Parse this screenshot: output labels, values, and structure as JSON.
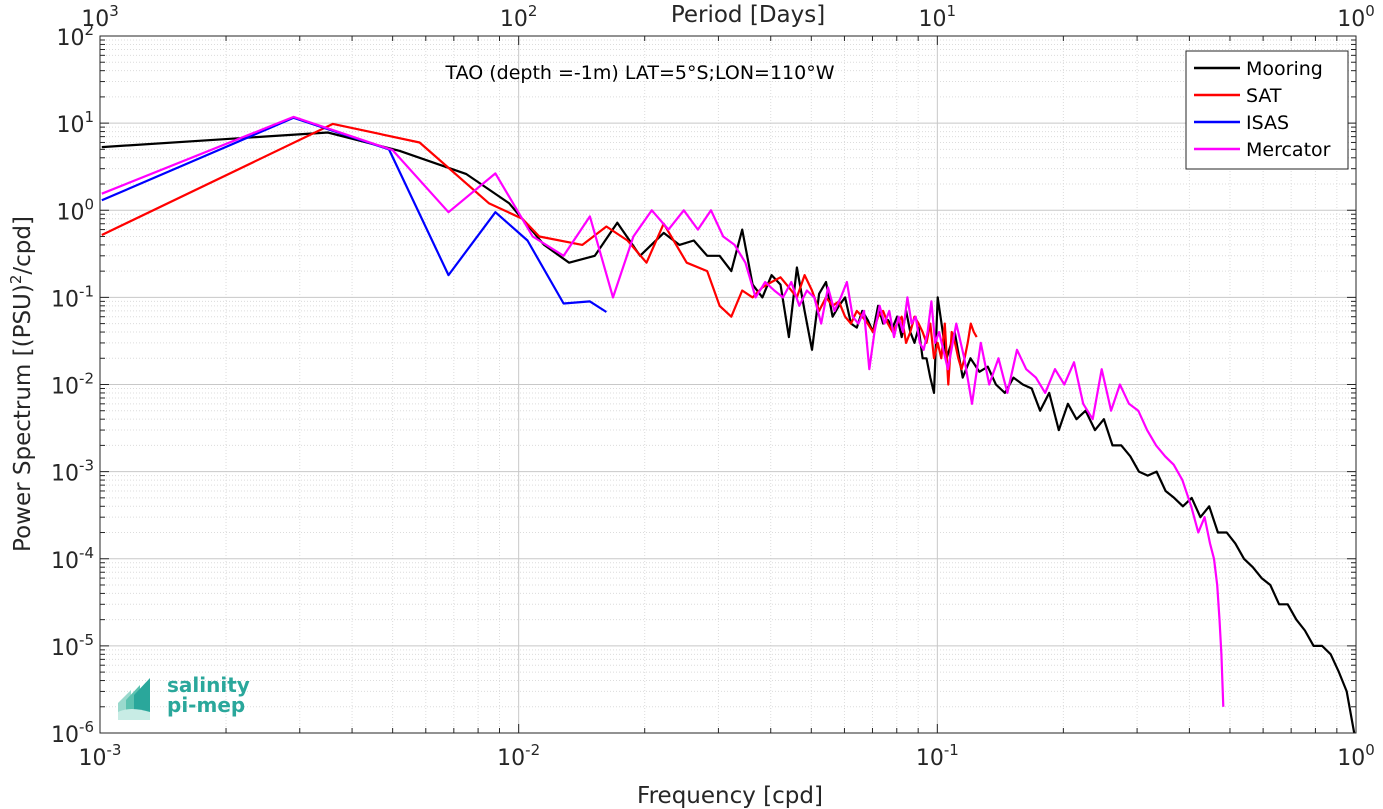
{
  "chart_data": {
    "type": "line",
    "title": "TAO (depth =-1m) LAT=5°S;LON=110°W",
    "xlabel": "Frequency [cpd]",
    "ylabel": "Power Spectrum [(PSU)²/cpd]",
    "top_axis_label": "Period [Days]",
    "x_scale": "log",
    "y_scale": "log",
    "xlim": [
      0.001,
      1
    ],
    "ylim": [
      1e-06,
      100
    ],
    "grid": true,
    "legend_position": "top-right",
    "x_ticks": [
      {
        "value": 0.001,
        "base": "10",
        "exp": "-3"
      },
      {
        "value": 0.01,
        "base": "10",
        "exp": "-2"
      },
      {
        "value": 0.1,
        "base": "10",
        "exp": "-1"
      },
      {
        "value": 1,
        "base": "10",
        "exp": "0"
      }
    ],
    "top_ticks": [
      {
        "value": 0.001,
        "base": "10",
        "exp": "3"
      },
      {
        "value": 0.01,
        "base": "10",
        "exp": "2"
      },
      {
        "value": 0.1,
        "base": "10",
        "exp": "1"
      },
      {
        "value": 1,
        "base": "10",
        "exp": "0"
      }
    ],
    "y_ticks": [
      {
        "value": 100,
        "base": "10",
        "exp": "2"
      },
      {
        "value": 10,
        "base": "10",
        "exp": "1"
      },
      {
        "value": 1,
        "base": "10",
        "exp": "0"
      },
      {
        "value": 0.1,
        "base": "10",
        "exp": "-1"
      },
      {
        "value": 0.01,
        "base": "10",
        "exp": "-2"
      },
      {
        "value": 0.001,
        "base": "10",
        "exp": "-3"
      },
      {
        "value": 0.0001,
        "base": "10",
        "exp": "-4"
      },
      {
        "value": 1e-05,
        "base": "10",
        "exp": "-5"
      },
      {
        "value": 1e-06,
        "base": "10",
        "exp": "-6"
      }
    ],
    "series": [
      {
        "name": "Mooring",
        "color": "#000000",
        "x": [
          0.00101,
          0.0035,
          0.0052,
          0.0075,
          0.0095,
          0.0115,
          0.0132,
          0.0152,
          0.0172,
          0.0195,
          0.0222,
          0.0242,
          0.0262,
          0.0282,
          0.0302,
          0.0322,
          0.0342,
          0.0362,
          0.0382,
          0.0402,
          0.0422,
          0.0442,
          0.0462,
          0.0482,
          0.0502,
          0.0522,
          0.0542,
          0.0562,
          0.0582,
          0.0602,
          0.0622,
          0.0642,
          0.0662,
          0.0682,
          0.0702,
          0.0722,
          0.0742,
          0.0762,
          0.0782,
          0.0802,
          0.0822,
          0.0842,
          0.0862,
          0.0882,
          0.0902,
          0.0922,
          0.0942,
          0.0962,
          0.0982,
          0.1002,
          0.1052,
          0.11,
          0.115,
          0.12,
          0.126,
          0.132,
          0.138,
          0.145,
          0.152,
          0.16,
          0.168,
          0.176,
          0.185,
          0.195,
          0.205,
          0.215,
          0.226,
          0.238,
          0.25,
          0.262,
          0.275,
          0.289,
          0.303,
          0.318,
          0.334,
          0.351,
          0.368,
          0.386,
          0.405,
          0.425,
          0.446,
          0.468,
          0.491,
          0.515,
          0.54,
          0.567,
          0.595,
          0.624,
          0.655,
          0.687,
          0.72,
          0.755,
          0.792,
          0.83,
          0.87,
          0.91,
          0.95,
          0.99
        ],
        "y": [
          5.3,
          7.8,
          4.8,
          2.6,
          1.2,
          0.4,
          0.25,
          0.3,
          0.72,
          0.3,
          0.55,
          0.4,
          0.45,
          0.3,
          0.3,
          0.2,
          0.6,
          0.14,
          0.1,
          0.18,
          0.14,
          0.035,
          0.22,
          0.07,
          0.025,
          0.11,
          0.15,
          0.06,
          0.08,
          0.1,
          0.05,
          0.045,
          0.07,
          0.055,
          0.04,
          0.08,
          0.05,
          0.055,
          0.045,
          0.06,
          0.035,
          0.07,
          0.04,
          0.03,
          0.045,
          0.02,
          0.02,
          0.012,
          0.008,
          0.1,
          0.02,
          0.04,
          0.012,
          0.02,
          0.014,
          0.016,
          0.01,
          0.008,
          0.012,
          0.01,
          0.009,
          0.005,
          0.008,
          0.003,
          0.006,
          0.004,
          0.005,
          0.003,
          0.004,
          0.002,
          0.002,
          0.0015,
          0.001,
          0.0009,
          0.001,
          0.0006,
          0.0005,
          0.0004,
          0.0005,
          0.0003,
          0.0004,
          0.0002,
          0.0002,
          0.00015,
          0.0001,
          8e-05,
          6e-05,
          5e-05,
          3e-05,
          3e-05,
          2e-05,
          1.5e-05,
          1e-05,
          1e-05,
          8e-06,
          5e-06,
          3e-06,
          1e-06
        ]
      },
      {
        "name": "SAT",
        "color": "#ff0000",
        "x": [
          0.00101,
          0.0036,
          0.0058,
          0.0085,
          0.0102,
          0.0112,
          0.0142,
          0.0162,
          0.0182,
          0.0202,
          0.0222,
          0.0252,
          0.0282,
          0.0302,
          0.0322,
          0.0342,
          0.0362,
          0.0382,
          0.0402,
          0.0422,
          0.0442,
          0.0462,
          0.0482,
          0.0502,
          0.0522,
          0.0542,
          0.0562,
          0.0582,
          0.0602,
          0.0622,
          0.0642,
          0.0662,
          0.0682,
          0.0702,
          0.0722,
          0.0742,
          0.0762,
          0.0782,
          0.0802,
          0.0822,
          0.0842,
          0.0862,
          0.0882,
          0.0902,
          0.0922,
          0.0942,
          0.0962,
          0.0982,
          0.1002,
          0.1022,
          0.1042,
          0.1062,
          0.1082,
          0.1102,
          0.1122,
          0.1142,
          0.1162,
          0.1182,
          0.1202,
          0.1222,
          0.1242
        ],
        "y": [
          0.52,
          9.8,
          6.0,
          1.2,
          0.8,
          0.5,
          0.4,
          0.65,
          0.45,
          0.25,
          0.7,
          0.25,
          0.2,
          0.08,
          0.06,
          0.12,
          0.1,
          0.13,
          0.15,
          0.17,
          0.13,
          0.1,
          0.18,
          0.12,
          0.07,
          0.1,
          0.08,
          0.09,
          0.06,
          0.05,
          0.07,
          0.06,
          0.05,
          0.04,
          0.06,
          0.07,
          0.05,
          0.04,
          0.05,
          0.06,
          0.03,
          0.04,
          0.06,
          0.05,
          0.04,
          0.03,
          0.05,
          0.02,
          0.03,
          0.02,
          0.05,
          0.01,
          0.04,
          0.03,
          0.02,
          0.015,
          0.02,
          0.03,
          0.05,
          0.04,
          0.035
        ]
      },
      {
        "name": "ISAS",
        "color": "#0000ff",
        "x": [
          0.00101,
          0.0029,
          0.0049,
          0.0068,
          0.0088,
          0.0105,
          0.0128,
          0.0148,
          0.0162
        ],
        "y": [
          1.3,
          11.5,
          5.0,
          0.18,
          0.95,
          0.45,
          0.085,
          0.09,
          0.068
        ]
      },
      {
        "name": "Mercator",
        "color": "#ff00ff",
        "x": [
          0.00101,
          0.0029,
          0.005,
          0.0068,
          0.0088,
          0.0108,
          0.0128,
          0.0148,
          0.0168,
          0.0188,
          0.0208,
          0.0228,
          0.0248,
          0.0268,
          0.0288,
          0.0308,
          0.0328,
          0.0348,
          0.0368,
          0.0388,
          0.0408,
          0.0428,
          0.0448,
          0.0468,
          0.0488,
          0.0508,
          0.0528,
          0.0548,
          0.0568,
          0.0588,
          0.0608,
          0.0628,
          0.0648,
          0.0668,
          0.0688,
          0.0708,
          0.0728,
          0.0748,
          0.0768,
          0.0788,
          0.0808,
          0.0828,
          0.0848,
          0.0868,
          0.0888,
          0.0908,
          0.0928,
          0.0948,
          0.0968,
          0.0988,
          0.101,
          0.106,
          0.111,
          0.116,
          0.121,
          0.127,
          0.133,
          0.14,
          0.147,
          0.155,
          0.163,
          0.172,
          0.181,
          0.191,
          0.201,
          0.212,
          0.223,
          0.235,
          0.247,
          0.26,
          0.273,
          0.287,
          0.302,
          0.317,
          0.333,
          0.35,
          0.367,
          0.385,
          0.404,
          0.42,
          0.435,
          0.448,
          0.458,
          0.466,
          0.472,
          0.477,
          0.482
        ],
        "y": [
          1.55,
          11.8,
          4.9,
          0.95,
          2.65,
          0.5,
          0.3,
          0.85,
          0.1,
          0.5,
          1.0,
          0.6,
          1.0,
          0.6,
          1.0,
          0.5,
          0.4,
          0.25,
          0.1,
          0.15,
          0.12,
          0.1,
          0.15,
          0.08,
          0.12,
          0.1,
          0.05,
          0.13,
          0.07,
          0.1,
          0.15,
          0.06,
          0.05,
          0.07,
          0.015,
          0.04,
          0.08,
          0.05,
          0.07,
          0.035,
          0.06,
          0.04,
          0.1,
          0.05,
          0.06,
          0.03,
          0.025,
          0.04,
          0.09,
          0.03,
          0.04,
          0.015,
          0.05,
          0.02,
          0.006,
          0.03,
          0.01,
          0.02,
          0.008,
          0.025,
          0.015,
          0.012,
          0.008,
          0.015,
          0.01,
          0.018,
          0.006,
          0.004,
          0.015,
          0.005,
          0.01,
          0.006,
          0.005,
          0.003,
          0.002,
          0.0015,
          0.0012,
          0.0008,
          0.0004,
          0.0002,
          0.0003,
          0.00015,
          0.0001,
          5e-05,
          2e-05,
          8e-06,
          2e-06
        ]
      }
    ]
  },
  "logo": {
    "line1": "salinity",
    "line2": "pi-mep"
  }
}
